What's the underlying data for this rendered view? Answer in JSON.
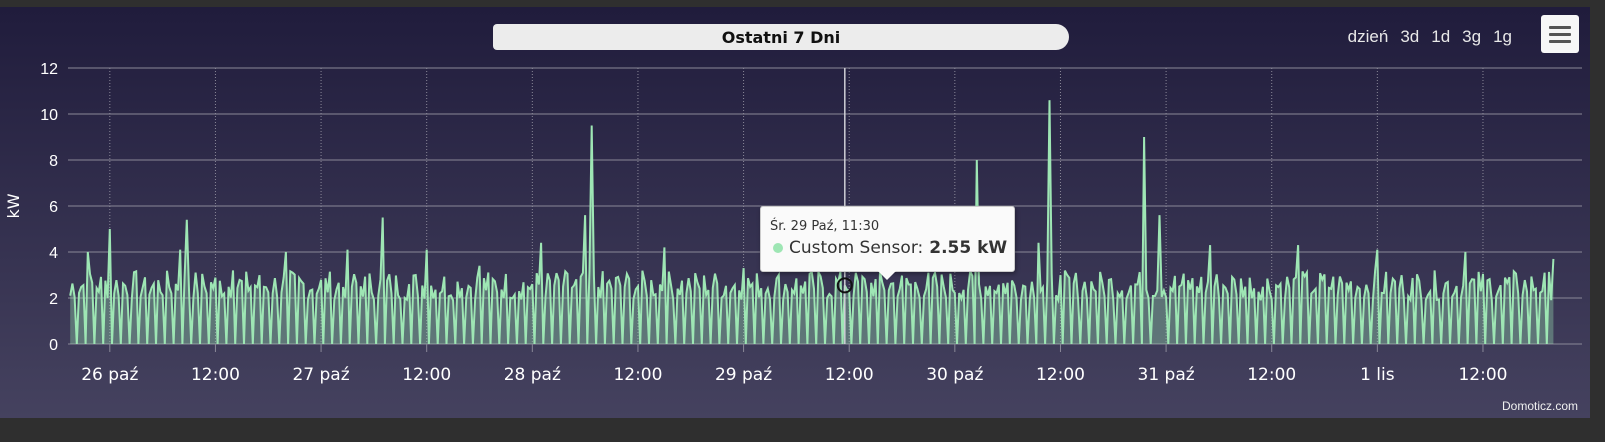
{
  "header": {
    "title": "Ostatni 7 Dni",
    "ranges": [
      "dzień",
      "3d",
      "1d",
      "3g",
      "1g"
    ],
    "menu_icon": "hamburger-icon"
  },
  "credits": "Domoticz.com",
  "tooltip": {
    "header": "Śr. 29 Paź, 11:30",
    "series": "Custom Sensor:",
    "value": "2.55 kW"
  },
  "colors": {
    "series": "#9ee6b4",
    "gridline": "#8a8898",
    "text": "#ffffff"
  },
  "chart_data": {
    "type": "area",
    "title": "Ostatni 7 Dni",
    "xlabel": "",
    "ylabel": "kW",
    "ylim": [
      0,
      12
    ],
    "yticks": [
      0,
      2,
      4,
      6,
      8,
      10,
      12
    ],
    "xrange": [
      "2023-10-25 19:15",
      "2023-11-01 23:15"
    ],
    "xticks": [
      {
        "t": "2023-10-26 00:00",
        "label": "26 paź"
      },
      {
        "t": "2023-10-26 12:00",
        "label": "12:00"
      },
      {
        "t": "2023-10-27 00:00",
        "label": "27 paź"
      },
      {
        "t": "2023-10-27 12:00",
        "label": "12:00"
      },
      {
        "t": "2023-10-28 00:00",
        "label": "28 paź"
      },
      {
        "t": "2023-10-28 12:00",
        "label": "12:00"
      },
      {
        "t": "2023-10-29 00:00",
        "label": "29 paź"
      },
      {
        "t": "2023-10-29 12:00",
        "label": "12:00"
      },
      {
        "t": "2023-10-30 00:00",
        "label": "30 paź"
      },
      {
        "t": "2023-10-30 12:00",
        "label": "12:00"
      },
      {
        "t": "2023-10-31 00:00",
        "label": "31 paź"
      },
      {
        "t": "2023-10-31 12:00",
        "label": "12:00"
      },
      {
        "t": "2023-11-01 00:00",
        "label": "1 lis"
      },
      {
        "t": "2023-11-01 12:00",
        "label": "12:00"
      }
    ],
    "grid": true,
    "legend": "none",
    "series": [
      {
        "name": "Custom Sensor",
        "unit": "kW",
        "values": [
          {
            "t": "2023-10-25 19:30",
            "v": 2.1
          },
          {
            "t": "2023-10-25 21:30",
            "v": 4.0
          },
          {
            "t": "2023-10-26 00:00",
            "v": 5.0
          },
          {
            "t": "2023-10-26 04:00",
            "v": 2.9
          },
          {
            "t": "2023-10-26 08:00",
            "v": 4.1
          },
          {
            "t": "2023-10-26 08:45",
            "v": 5.4
          },
          {
            "t": "2023-10-26 14:00",
            "v": 3.2
          },
          {
            "t": "2023-10-26 20:00",
            "v": 4.0
          },
          {
            "t": "2023-10-27 03:00",
            "v": 4.1
          },
          {
            "t": "2023-10-27 07:00",
            "v": 5.5
          },
          {
            "t": "2023-10-27 12:00",
            "v": 4.1
          },
          {
            "t": "2023-10-27 18:00",
            "v": 3.4
          },
          {
            "t": "2023-10-28 01:00",
            "v": 4.4
          },
          {
            "t": "2023-10-28 06:00",
            "v": 5.6
          },
          {
            "t": "2023-10-28 06:45",
            "v": 9.5
          },
          {
            "t": "2023-10-28 15:00",
            "v": 4.2
          },
          {
            "t": "2023-10-29 00:00",
            "v": 3.3
          },
          {
            "t": "2023-10-29 11:30",
            "v": 2.55
          },
          {
            "t": "2023-10-30 02:30",
            "v": 8.0
          },
          {
            "t": "2023-10-30 09:30",
            "v": 4.4
          },
          {
            "t": "2023-10-30 10:45",
            "v": 10.6
          },
          {
            "t": "2023-10-30 21:30",
            "v": 9.0
          },
          {
            "t": "2023-10-30 23:15",
            "v": 5.6
          },
          {
            "t": "2023-10-31 05:00",
            "v": 4.3
          },
          {
            "t": "2023-10-31 15:00",
            "v": 4.3
          },
          {
            "t": "2023-11-01 00:00",
            "v": 4.1
          },
          {
            "t": "2023-11-01 10:00",
            "v": 4.0
          },
          {
            "t": "2023-11-01 20:00",
            "v": 3.7
          }
        ]
      }
    ]
  }
}
